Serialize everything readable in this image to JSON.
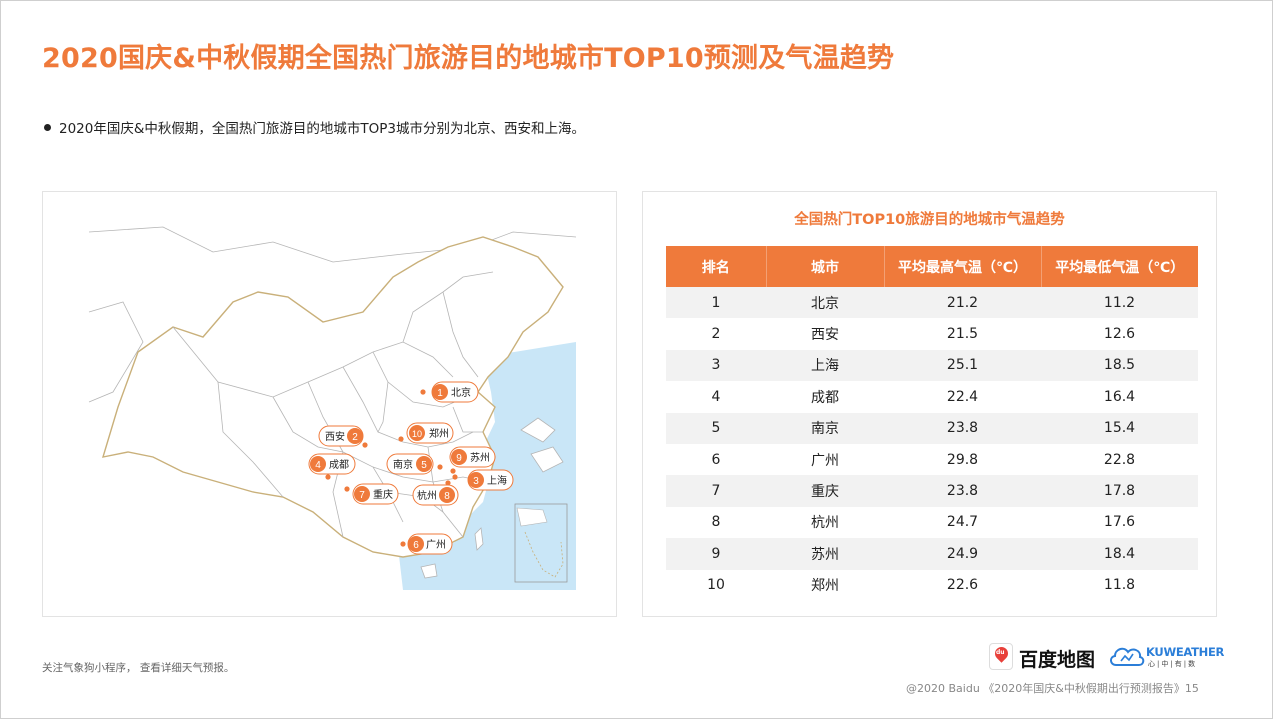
{
  "title": "2020国庆&中秋假期全国热门旅游目的地城市TOP10预测及气温趋势",
  "bullet": "2020年国庆&中秋假期，全国热门旅游目的地城市TOP3城市分别为北京、西安和上海。",
  "map": {
    "markers": [
      {
        "rank": "1",
        "city": "北京"
      },
      {
        "rank": "2",
        "city": "西安"
      },
      {
        "rank": "3",
        "city": "上海"
      },
      {
        "rank": "4",
        "city": "成都"
      },
      {
        "rank": "5",
        "city": "南京"
      },
      {
        "rank": "6",
        "city": "广州"
      },
      {
        "rank": "7",
        "city": "重庆"
      },
      {
        "rank": "8",
        "city": "杭州"
      },
      {
        "rank": "9",
        "city": "苏州"
      },
      {
        "rank": "10",
        "city": "郑州"
      }
    ],
    "colors": {
      "accent": "#ef7a3b",
      "water": "#c9e6f7",
      "land": "#ffffff",
      "border": "#b5b5b5",
      "national_border": "#c9b07a"
    }
  },
  "table": {
    "title": "全国热门TOP10旅游目的地城市气温趋势",
    "headers": [
      "排名",
      "城市",
      "平均最高气温（℃）",
      "平均最低气温（℃）"
    ],
    "rows": [
      [
        "1",
        "北京",
        "21.2",
        "11.2"
      ],
      [
        "2",
        "西安",
        "21.5",
        "12.6"
      ],
      [
        "3",
        "上海",
        "25.1",
        "18.5"
      ],
      [
        "4",
        "成都",
        "22.4",
        "16.4"
      ],
      [
        "5",
        "南京",
        "23.8",
        "15.4"
      ],
      [
        "6",
        "广州",
        "29.8",
        "22.8"
      ],
      [
        "7",
        "重庆",
        "23.8",
        "17.8"
      ],
      [
        "8",
        "杭州",
        "24.7",
        "17.6"
      ],
      [
        "9",
        "苏州",
        "24.9",
        "18.4"
      ],
      [
        "10",
        "郑州",
        "22.6",
        "11.8"
      ]
    ]
  },
  "footer": {
    "note": "关注气象狗小程序，  查看详细天气预报。",
    "baidu_logo_text": "百度地图",
    "baidu_icon_text": "du",
    "kuweather_name": "KUWEATHER",
    "kuweather_sub": "心|中|有|数",
    "copyright": "@2020 Baidu 《2020年国庆&中秋假期出行预测报告》15"
  },
  "accent_color": "#ef7a3b"
}
